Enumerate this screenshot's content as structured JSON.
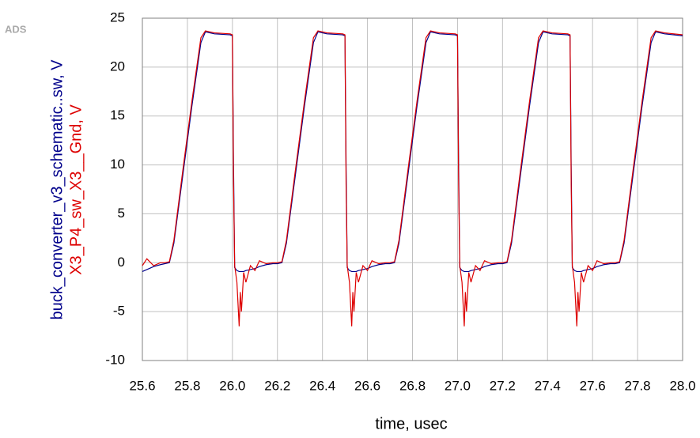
{
  "chart_data": {
    "type": "line",
    "watermark": "ADS",
    "xlabel": "time, usec",
    "x": [
      25.6,
      25.62,
      25.65,
      25.68,
      25.7,
      25.72,
      25.74,
      25.78,
      25.82,
      25.86,
      25.88,
      25.92,
      25.99,
      26.0,
      26.005,
      26.01,
      26.02,
      26.03,
      26.035,
      26.04,
      26.05,
      26.06,
      26.08,
      26.1,
      26.12,
      26.15,
      26.18,
      26.2,
      26.22,
      26.24,
      26.28,
      26.32,
      26.36,
      26.38,
      26.42,
      26.49,
      26.5,
      26.505,
      26.51,
      26.52,
      26.53,
      26.535,
      26.54,
      26.55,
      26.56,
      26.58,
      26.6,
      26.62,
      26.65,
      26.68,
      26.7,
      26.72,
      26.74,
      26.78,
      26.82,
      26.86,
      26.88,
      26.92,
      26.99,
      27.0,
      27.005,
      27.01,
      27.02,
      27.03,
      27.035,
      27.04,
      27.05,
      27.06,
      27.08,
      27.1,
      27.12,
      27.15,
      27.18,
      27.2,
      27.22,
      27.24,
      27.28,
      27.32,
      27.36,
      27.38,
      27.42,
      27.49,
      27.5,
      27.505,
      27.51,
      27.52,
      27.53,
      27.535,
      27.54,
      27.55,
      27.56,
      27.58,
      27.6,
      27.62,
      27.65,
      27.68,
      27.7,
      27.72,
      27.74,
      27.78,
      27.82,
      27.86,
      27.88,
      27.92,
      28.0
    ],
    "series": [
      {
        "name": "buck_converter_v3_schematic..sw, V",
        "color": "#00008b",
        "values": [
          -0.9,
          -0.7,
          -0.4,
          -0.2,
          -0.1,
          0,
          2,
          9,
          16,
          22.5,
          23.6,
          23.4,
          23.3,
          23.2,
          10,
          -0.5,
          -0.8,
          -0.9,
          -0.9,
          -0.9,
          -0.9,
          -0.8,
          -0.7,
          -0.6,
          -0.4,
          -0.2,
          -0.1,
          -0.1,
          0,
          2,
          9,
          16,
          22.5,
          23.6,
          23.4,
          23.3,
          23.2,
          10,
          -0.5,
          -0.8,
          -0.9,
          -0.9,
          -0.9,
          -0.9,
          -0.8,
          -0.7,
          -0.6,
          -0.4,
          -0.2,
          -0.1,
          -0.1,
          0,
          2,
          9,
          16,
          22.5,
          23.6,
          23.4,
          23.3,
          23.2,
          10,
          -0.5,
          -0.8,
          -0.9,
          -0.9,
          -0.9,
          -0.9,
          -0.8,
          -0.7,
          -0.6,
          -0.4,
          -0.2,
          -0.1,
          -0.1,
          0,
          2,
          9,
          16,
          22.5,
          23.6,
          23.4,
          23.3,
          23.2,
          10,
          -0.5,
          -0.8,
          -0.9,
          -0.9,
          -0.9,
          -0.9,
          -0.8,
          -0.7,
          -0.6,
          -0.4,
          -0.2,
          -0.1,
          -0.1,
          0,
          2,
          9,
          16,
          22.5,
          23.6,
          23.4,
          23.2
        ]
      },
      {
        "name": "X3_P4_sw_X3__Gnd, V",
        "color": "#dd0000",
        "values": [
          -0.3,
          0.4,
          -0.3,
          0,
          0,
          0.1,
          2.3,
          9.5,
          16.5,
          23,
          23.7,
          23.5,
          23.4,
          23.3,
          8,
          -0.3,
          -2,
          -6.5,
          -3,
          -5,
          -1,
          -2,
          -0.3,
          -0.8,
          0.2,
          -0.1,
          0,
          0,
          0.1,
          2.3,
          9.5,
          16.5,
          23,
          23.7,
          23.5,
          23.4,
          23.3,
          8,
          -0.3,
          -2,
          -6.5,
          -3,
          -5,
          -1,
          -2,
          -0.3,
          -0.8,
          0.2,
          -0.1,
          0,
          0,
          0.1,
          2.3,
          9.5,
          16.5,
          23,
          23.7,
          23.5,
          23.4,
          23.3,
          8,
          -0.3,
          -2,
          -6.5,
          -3,
          -5,
          -1,
          -2,
          -0.3,
          -0.8,
          0.2,
          -0.1,
          0,
          0,
          0.1,
          2.3,
          9.5,
          16.5,
          23,
          23.7,
          23.5,
          23.4,
          23.3,
          8,
          -0.3,
          -2,
          -6.5,
          -3,
          -5,
          -1,
          -2,
          -0.3,
          -0.8,
          0.2,
          -0.1,
          0,
          0,
          0.1,
          2.3,
          9.5,
          16.5,
          23,
          23.7,
          23.5,
          23.3
        ]
      }
    ],
    "xlim": [
      25.6,
      28.0
    ],
    "xticks": [
      25.6,
      25.8,
      {
        "value": 26.0,
        "label": "26.0"
      },
      26.2,
      26.4,
      26.6,
      26.8,
      {
        "value": 27.0,
        "label": "27.0"
      },
      27.2,
      27.4,
      27.6,
      27.8,
      {
        "value": 28.0,
        "label": "28.0"
      }
    ],
    "ylim": [
      -10,
      25
    ],
    "yticks": [
      -10,
      -5,
      0,
      5,
      10,
      15,
      20,
      25
    ],
    "grid": true
  }
}
